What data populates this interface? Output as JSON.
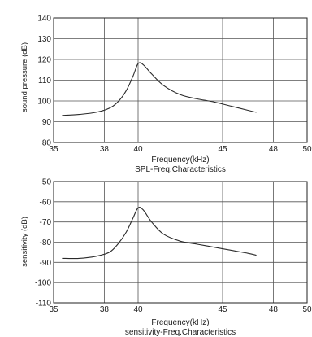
{
  "chart_data": [
    {
      "type": "line",
      "xlabel": "Frequency(kHz)",
      "subtitle": "SPL-Freq.Characteristics",
      "ylabel": "sound pressure (dB)",
      "xticks": [
        35,
        38,
        40,
        45,
        48,
        50
      ],
      "yticks": [
        80,
        90,
        100,
        110,
        120,
        130,
        140
      ],
      "xlim": [
        35,
        50
      ],
      "ylim": [
        80,
        140
      ],
      "grid": true,
      "series": [
        {
          "x": [
            35.5,
            36.5,
            37.5,
            38.3,
            38.8,
            39.3,
            39.7,
            40.0,
            40.3,
            40.8,
            41.5,
            42.5,
            43.5,
            44.5,
            45.5,
            46.5,
            47.0
          ],
          "values": [
            93,
            93.5,
            94.5,
            96.5,
            99.5,
            105,
            112,
            118,
            117.5,
            113,
            107.5,
            103,
            101,
            99.5,
            97.5,
            95.5,
            94.5
          ]
        }
      ]
    },
    {
      "type": "line",
      "xlabel": "Frequency(kHz)",
      "subtitle": "sensitivity-Freq.Characteristics",
      "ylabel": "sensitivity (dB)",
      "xticks": [
        35,
        38,
        40,
        45,
        48,
        50
      ],
      "yticks": [
        -50,
        -60,
        -70,
        -80,
        -90,
        -100,
        -110
      ],
      "xlim": [
        35,
        50
      ],
      "ylim": [
        -110,
        -50
      ],
      "grid": true,
      "series": [
        {
          "x": [
            35.5,
            36.5,
            37.5,
            38.3,
            38.8,
            39.3,
            39.7,
            40.0,
            40.3,
            40.8,
            41.5,
            42.5,
            43.5,
            44.5,
            45.5,
            46.5,
            47.0
          ],
          "values": [
            -88,
            -88,
            -87,
            -85,
            -81,
            -75,
            -68,
            -63,
            -64,
            -70,
            -76,
            -79.5,
            -81,
            -82.5,
            -84,
            -85.5,
            -86.5
          ]
        }
      ]
    }
  ]
}
